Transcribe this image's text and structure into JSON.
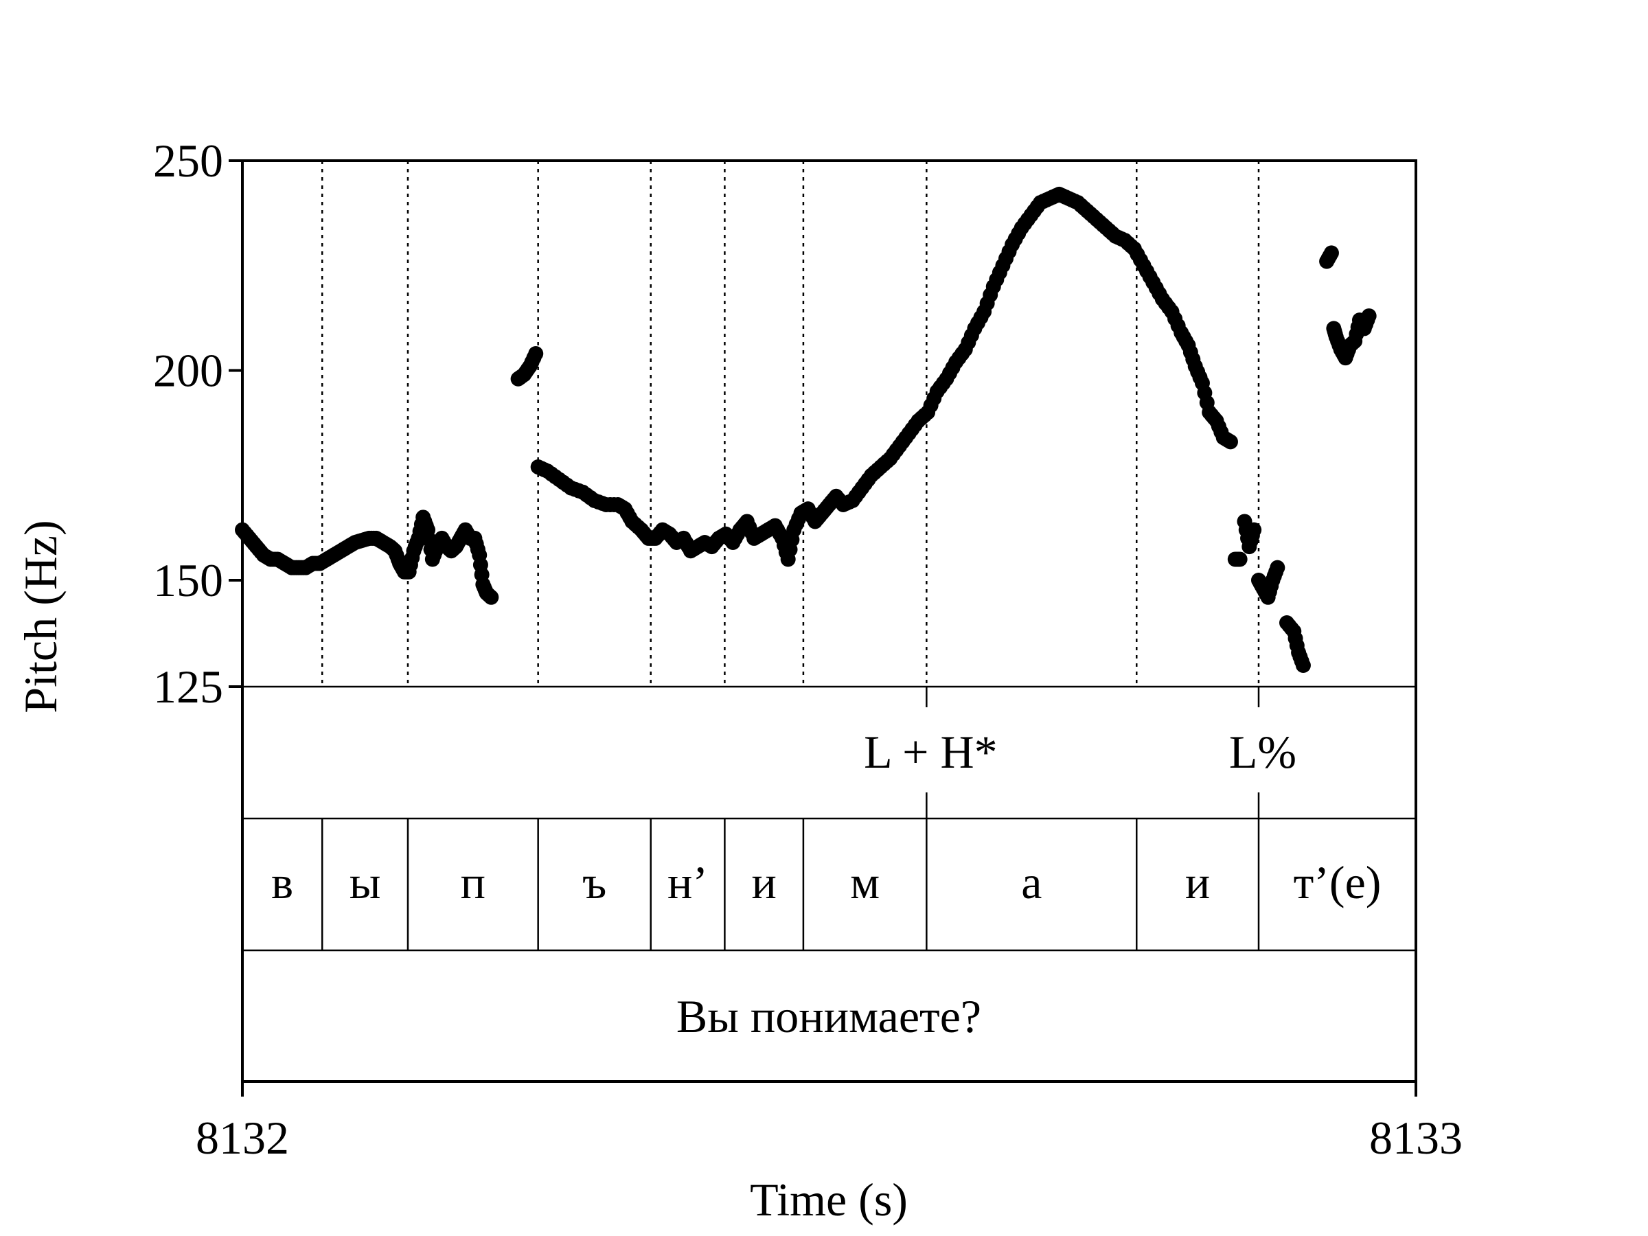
{
  "chart_data": {
    "type": "scatter",
    "title": "",
    "xlabel": "Time (s)",
    "ylabel": "Pitch (Hz)",
    "xlim": [
      8132,
      8133
    ],
    "ylim": [
      125,
      250
    ],
    "x_tick_labels": [
      "8132",
      "8133"
    ],
    "y_ticks": [
      125,
      150,
      200,
      250
    ],
    "y_tick_labels": [
      "125",
      "150",
      "200",
      "250"
    ],
    "segment_boundaries": [
      8132.068,
      8132.141,
      8132.252,
      8132.348,
      8132.411,
      8132.478,
      8132.583,
      8132.762,
      8132.866
    ],
    "tones": [
      {
        "label": "L + H*",
        "time": 8132.583
      },
      {
        "label": "L%",
        "time": 8132.866
      }
    ],
    "segments": [
      {
        "label": "в",
        "start": 8132.0,
        "end": 8132.068
      },
      {
        "label": "ы",
        "start": 8132.068,
        "end": 8132.141
      },
      {
        "label": "п",
        "start": 8132.141,
        "end": 8132.252
      },
      {
        "label": "ъ",
        "start": 8132.252,
        "end": 8132.348
      },
      {
        "label": "н’",
        "start": 8132.348,
        "end": 8132.411
      },
      {
        "label": "и",
        "start": 8132.411,
        "end": 8132.478
      },
      {
        "label": "м",
        "start": 8132.478,
        "end": 8132.583
      },
      {
        "label": "а",
        "start": 8132.583,
        "end": 8132.762
      },
      {
        "label": "и",
        "start": 8132.762,
        "end": 8132.866
      },
      {
        "label": "т’(е)",
        "start": 8132.866,
        "end": 8133.0
      }
    ],
    "sentence": "Вы понимаете?",
    "pitch_segments": [
      [
        [
          8132.0,
          162
        ],
        [
          8132.006,
          160
        ],
        [
          8132.012,
          158
        ],
        [
          8132.018,
          156
        ],
        [
          8132.024,
          155
        ],
        [
          8132.03,
          155
        ],
        [
          8132.036,
          154
        ],
        [
          8132.042,
          153
        ],
        [
          8132.048,
          153
        ],
        [
          8132.054,
          153
        ],
        [
          8132.06,
          154
        ],
        [
          8132.066,
          154
        ],
        [
          8132.072,
          155
        ],
        [
          8132.078,
          156
        ],
        [
          8132.084,
          157
        ],
        [
          8132.09,
          158
        ],
        [
          8132.096,
          159
        ],
        [
          8132.102,
          159.5
        ],
        [
          8132.108,
          160
        ],
        [
          8132.114,
          160
        ],
        [
          8132.12,
          159
        ],
        [
          8132.126,
          158
        ],
        [
          8132.13,
          157
        ],
        [
          8132.134,
          154
        ],
        [
          8132.138,
          152
        ],
        [
          8132.142,
          152
        ],
        [
          8132.146,
          157
        ],
        [
          8132.15,
          160
        ],
        [
          8132.154,
          165
        ],
        [
          8132.158,
          162
        ],
        [
          8132.162,
          155
        ],
        [
          8132.166,
          158
        ],
        [
          8132.17,
          160
        ],
        [
          8132.174,
          158
        ],
        [
          8132.178,
          157
        ],
        [
          8132.182,
          158
        ],
        [
          8132.186,
          160
        ],
        [
          8132.19,
          162
        ],
        [
          8132.194,
          160
        ],
        [
          8132.198,
          160
        ],
        [
          8132.202,
          156
        ],
        [
          8132.205,
          149
        ],
        [
          8132.208,
          147
        ],
        [
          8132.212,
          146
        ]
      ],
      [
        [
          8132.235,
          198
        ],
        [
          8132.24,
          199
        ],
        [
          8132.245,
          201
        ],
        [
          8132.25,
          204
        ]
      ],
      [
        [
          8132.252,
          177
        ],
        [
          8132.26,
          176
        ],
        [
          8132.27,
          174
        ],
        [
          8132.28,
          172
        ],
        [
          8132.29,
          171
        ],
        [
          8132.3,
          169
        ],
        [
          8132.31,
          168
        ],
        [
          8132.32,
          168
        ],
        [
          8132.326,
          167
        ],
        [
          8132.332,
          164
        ],
        [
          8132.34,
          162
        ],
        [
          8132.346,
          160
        ],
        [
          8132.352,
          160
        ],
        [
          8132.358,
          162
        ],
        [
          8132.364,
          161
        ],
        [
          8132.37,
          159
        ],
        [
          8132.376,
          160
        ],
        [
          8132.382,
          157
        ],
        [
          8132.388,
          158
        ],
        [
          8132.394,
          159
        ],
        [
          8132.4,
          158
        ],
        [
          8132.406,
          160
        ],
        [
          8132.412,
          161
        ],
        [
          8132.418,
          159
        ],
        [
          8132.424,
          162
        ],
        [
          8132.43,
          164
        ],
        [
          8132.436,
          160
        ],
        [
          8132.442,
          161
        ],
        [
          8132.448,
          162
        ],
        [
          8132.454,
          163
        ],
        [
          8132.46,
          160
        ],
        [
          8132.465,
          155
        ],
        [
          8132.47,
          162
        ],
        [
          8132.476,
          166
        ],
        [
          8132.482,
          167
        ],
        [
          8132.488,
          164
        ],
        [
          8132.494,
          166
        ],
        [
          8132.5,
          168
        ],
        [
          8132.506,
          170
        ],
        [
          8132.512,
          168
        ],
        [
          8132.52,
          169
        ],
        [
          8132.528,
          172
        ],
        [
          8132.536,
          175
        ],
        [
          8132.544,
          177
        ],
        [
          8132.552,
          179
        ],
        [
          8132.56,
          182
        ],
        [
          8132.568,
          185
        ],
        [
          8132.576,
          188
        ],
        [
          8132.584,
          190
        ],
        [
          8132.592,
          195
        ],
        [
          8132.6,
          198
        ],
        [
          8132.608,
          202
        ],
        [
          8132.616,
          205
        ],
        [
          8132.624,
          210
        ],
        [
          8132.632,
          214
        ],
        [
          8132.64,
          220
        ],
        [
          8132.648,
          225
        ],
        [
          8132.656,
          230
        ],
        [
          8132.664,
          234
        ],
        [
          8132.672,
          237
        ],
        [
          8132.68,
          240
        ],
        [
          8132.688,
          241
        ],
        [
          8132.696,
          242
        ],
        [
          8132.704,
          241
        ],
        [
          8132.712,
          240
        ],
        [
          8132.72,
          238
        ],
        [
          8132.728,
          236
        ],
        [
          8132.736,
          234
        ],
        [
          8132.744,
          232
        ],
        [
          8132.752,
          231
        ],
        [
          8132.76,
          229
        ],
        [
          8132.768,
          225
        ],
        [
          8132.776,
          221
        ],
        [
          8132.784,
          217
        ],
        [
          8132.792,
          214
        ],
        [
          8132.8,
          209
        ],
        [
          8132.806,
          206
        ],
        [
          8132.812,
          201
        ],
        [
          8132.818,
          197
        ],
        [
          8132.824,
          190
        ],
        [
          8132.83,
          188
        ],
        [
          8132.836,
          184
        ],
        [
          8132.842,
          183
        ],
        [
          8132.846,
          155
        ],
        [
          8132.85,
          155
        ],
        [
          8132.854,
          164
        ],
        [
          8132.858,
          158
        ],
        [
          8132.862,
          162
        ],
        [
          8132.866,
          150
        ],
        [
          8132.87,
          148
        ],
        [
          8132.874,
          146
        ],
        [
          8132.878,
          150
        ],
        [
          8132.882,
          153
        ],
        [
          8132.89,
          140
        ],
        [
          8132.896,
          138
        ],
        [
          8132.9,
          133
        ],
        [
          8132.904,
          130
        ]
      ],
      [
        [
          8132.924,
          226
        ],
        [
          8132.928,
          228
        ],
        [
          8132.93,
          210
        ],
        [
          8132.932,
          208
        ],
        [
          8132.936,
          205
        ],
        [
          8132.94,
          203
        ],
        [
          8132.944,
          206
        ],
        [
          8132.948,
          207
        ],
        [
          8132.952,
          212
        ],
        [
          8132.956,
          210
        ],
        [
          8132.96,
          213
        ]
      ]
    ]
  }
}
